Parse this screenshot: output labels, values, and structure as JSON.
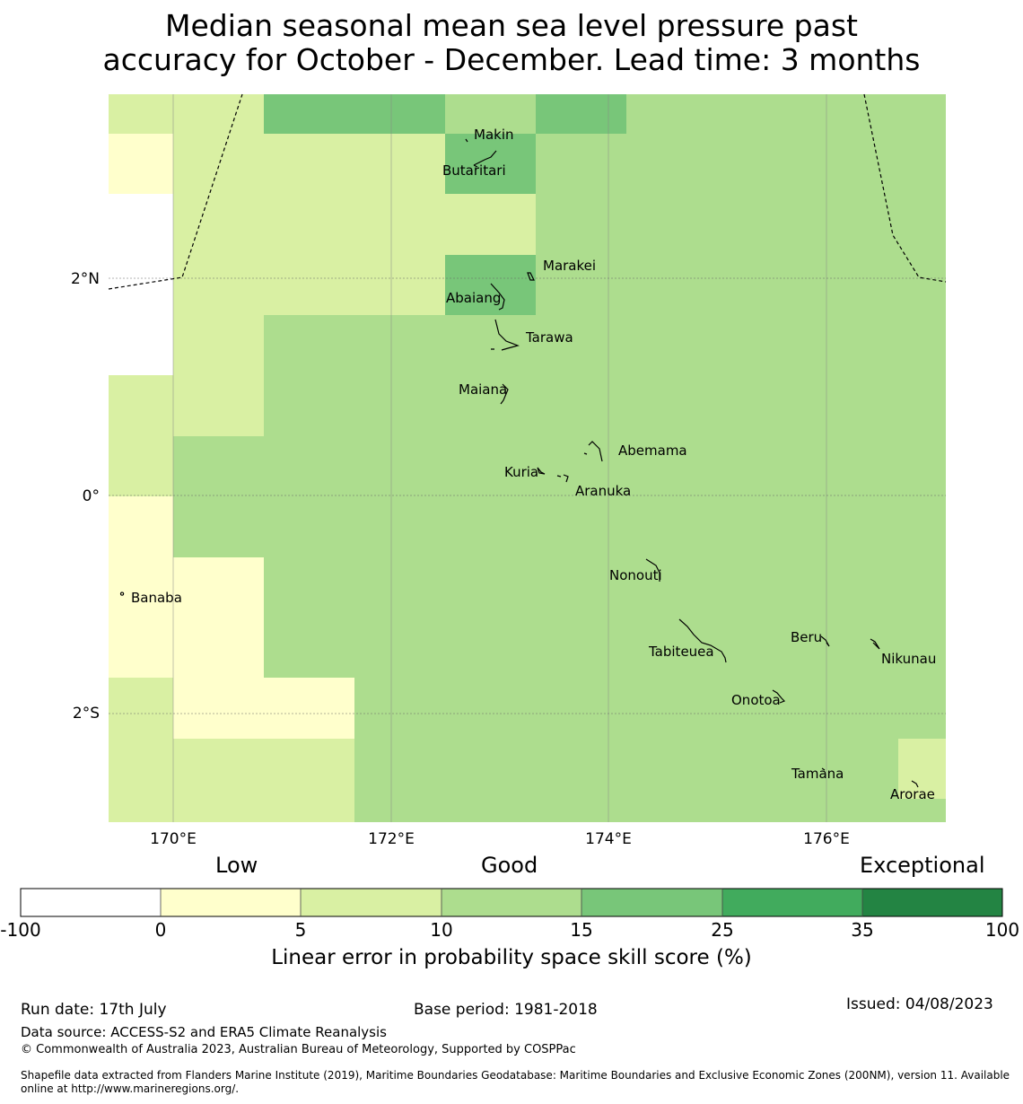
{
  "title_lines": [
    "Median seasonal mean sea level pressure past",
    "accuracy for October - December. Lead time: 3 months"
  ],
  "axes": {
    "x_ticks": [
      "170°E",
      "172°E",
      "174°E",
      "176°E"
    ],
    "y_ticks": [
      "2°N",
      "0°",
      "2°S"
    ]
  },
  "colors": {
    "white": "#ffffff",
    "pale_yellow": "#ffffcc",
    "yellow_green": "#d9f0a3",
    "light_green": "#addd8e",
    "mid_green": "#78c679",
    "green": "#41ab5d",
    "dark_green": "#238443"
  },
  "places": [
    {
      "name": "Makin"
    },
    {
      "name": "Butaritari"
    },
    {
      "name": "Marakei"
    },
    {
      "name": "Abaiang"
    },
    {
      "name": "Tarawa"
    },
    {
      "name": "Maiana"
    },
    {
      "name": "Abemama"
    },
    {
      "name": "Kuria"
    },
    {
      "name": "Aranuka"
    },
    {
      "name": "Nonouti"
    },
    {
      "name": "Banaba"
    },
    {
      "name": "Beru"
    },
    {
      "name": "Tabiteuea"
    },
    {
      "name": "Nikunau"
    },
    {
      "name": "Onotoa"
    },
    {
      "name": "Tamana"
    },
    {
      "name": "Arorae"
    }
  ],
  "colorbar": {
    "category_words": [
      "Low",
      "Good",
      "Exceptional"
    ],
    "boundaries": [
      "-100",
      "0",
      "5",
      "10",
      "15",
      "25",
      "35",
      "100"
    ],
    "label": "Linear error in probability space skill score (%)"
  },
  "footer": {
    "run_date": "Run date: 17th July",
    "base_period": "Base period: 1981-2018",
    "issued": "Issued: 04/08/2023",
    "data_source": "Data source: ACCESS-S2 and ERA5 Climate Reanalysis",
    "copyright": "© Commonwealth of Australia 2023, Australian Bureau of Meteorology, Supported by COSPPac",
    "shapefile_line1": "Shapefile data extracted from Flanders Marine Institute (2019), Maritime Boundaries Geodatabase: Maritime Boundaries and Exclusive Economic Zones (200NM), version 11. Available",
    "shapefile_line2": "online at http://www.marineregions.org/."
  }
}
